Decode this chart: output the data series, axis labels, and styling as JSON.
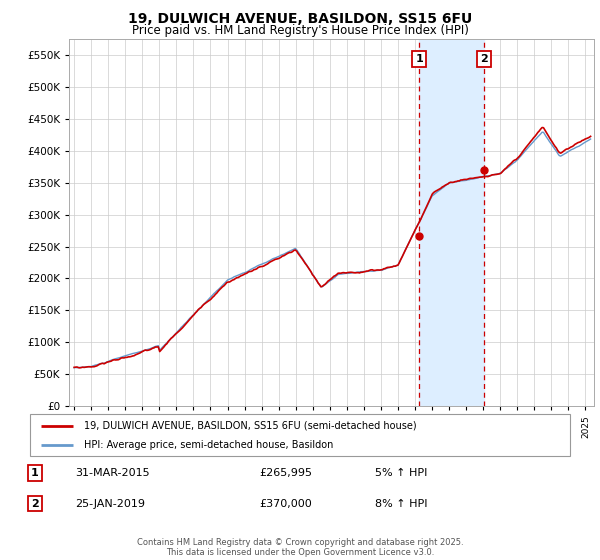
{
  "title": "19, DULWICH AVENUE, BASILDON, SS15 6FU",
  "subtitle": "Price paid vs. HM Land Registry's House Price Index (HPI)",
  "bg_color": "#ffffff",
  "plot_bg_color": "#ffffff",
  "grid_color": "#cccccc",
  "hpi_fill_color": "#ddeeff",
  "hpi_line_color": "#6699cc",
  "price_line_color": "#cc0000",
  "vline_color": "#cc0000",
  "sale1_year": 2015.25,
  "sale1_price": 265995,
  "sale1_label": "1",
  "sale1_date": "31-MAR-2015",
  "sale1_hpi_pct": "5% ↑ HPI",
  "sale2_year": 2019.07,
  "sale2_price": 370000,
  "sale2_label": "2",
  "sale2_date": "25-JAN-2019",
  "sale2_hpi_pct": "8% ↑ HPI",
  "xmin": 1994.7,
  "xmax": 2025.5,
  "ymin": 0,
  "ymax": 575000,
  "yticks": [
    0,
    50000,
    100000,
    150000,
    200000,
    250000,
    300000,
    350000,
    400000,
    450000,
    500000,
    550000
  ],
  "xtick_years": [
    1995,
    1996,
    1997,
    1998,
    1999,
    2000,
    2001,
    2002,
    2003,
    2004,
    2005,
    2006,
    2007,
    2008,
    2009,
    2010,
    2011,
    2012,
    2013,
    2014,
    2015,
    2016,
    2017,
    2018,
    2019,
    2020,
    2021,
    2022,
    2023,
    2024,
    2025
  ],
  "legend_line1": "19, DULWICH AVENUE, BASILDON, SS15 6FU (semi-detached house)",
  "legend_line2": "HPI: Average price, semi-detached house, Basildon",
  "footnote": "Contains HM Land Registry data © Crown copyright and database right 2025.\nThis data is licensed under the Open Government Licence v3.0."
}
